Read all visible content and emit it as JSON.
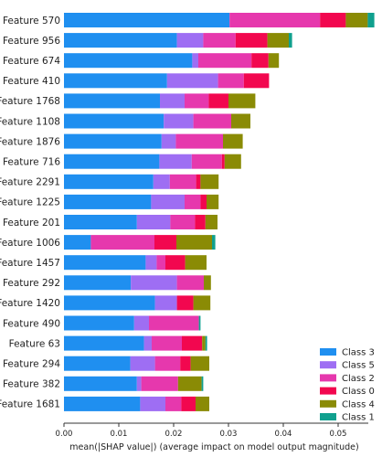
{
  "chart_data": {
    "type": "bar",
    "orientation": "horizontal",
    "stacked": true,
    "xlabel": "mean(|SHAP value|) (average impact on model output magnitude)",
    "ylabel": "",
    "xlim": [
      0,
      0.0555
    ],
    "xticks": [
      "0.00",
      "0.01",
      "0.02",
      "0.03",
      "0.04",
      "0.05"
    ],
    "grid": false,
    "legend_position": "lower-right",
    "categories": [
      "Feature 570",
      "Feature 956",
      "Feature 674",
      "Feature 410",
      "Feature 1768",
      "Feature 1108",
      "Feature 1876",
      "Feature 716",
      "Feature 2291",
      "Feature 1225",
      "Feature 201",
      "Feature 1006",
      "Feature 1457",
      "Feature 292",
      "Feature 1420",
      "Feature 490",
      "Feature 63",
      "Feature 294",
      "Feature 382",
      "Feature 1681"
    ],
    "series": [
      {
        "name": "Class 3",
        "color": "#1f8ff0",
        "values": [
          0.0302,
          0.0206,
          0.0234,
          0.0188,
          0.0175,
          0.0182,
          0.0178,
          0.0174,
          0.0163,
          0.0159,
          0.0133,
          0.0049,
          0.0149,
          0.0122,
          0.0166,
          0.0128,
          0.0146,
          0.0121,
          0.0133,
          0.0139
        ]
      },
      {
        "name": "Class 5",
        "color": "#9e6ef3",
        "values": [
          0.0,
          0.0048,
          0.0011,
          0.0093,
          0.0045,
          0.0054,
          0.0026,
          0.0059,
          0.003,
          0.0061,
          0.0061,
          0.0,
          0.002,
          0.0084,
          0.004,
          0.0027,
          0.0014,
          0.0045,
          0.0008,
          0.0046
        ]
      },
      {
        "name": "Class 2",
        "color": "#e638ad",
        "values": [
          0.0165,
          0.0059,
          0.0097,
          0.0047,
          0.0044,
          0.0069,
          0.0086,
          0.0055,
          0.0048,
          0.0029,
          0.0045,
          0.0116,
          0.0016,
          0.0049,
          0.0,
          0.0091,
          0.0055,
          0.0046,
          0.0067,
          0.0029
        ]
      },
      {
        "name": "Class 0",
        "color": "#f2074f",
        "values": [
          0.0047,
          0.0058,
          0.0031,
          0.0046,
          0.0036,
          0.0,
          0.0,
          0.0005,
          0.0008,
          0.0011,
          0.0019,
          0.004,
          0.0036,
          0.0,
          0.003,
          0.0,
          0.0037,
          0.0019,
          0.0,
          0.0026
        ]
      },
      {
        "name": "Class 4",
        "color": "#8a8b05",
        "values": [
          0.004,
          0.0039,
          0.0019,
          0.0,
          0.0049,
          0.0035,
          0.0036,
          0.003,
          0.0033,
          0.0022,
          0.0022,
          0.0065,
          0.0039,
          0.0013,
          0.0031,
          0.0,
          0.0006,
          0.0034,
          0.0043,
          0.0025
        ]
      },
      {
        "name": "Class 1",
        "color": "#10a08e",
        "values": [
          0.0012,
          0.0006,
          0.0,
          0.0,
          0.0,
          0.0,
          0.0,
          0.0,
          0.0,
          0.0,
          0.0,
          0.0006,
          0.0,
          0.0,
          0.0,
          0.0003,
          0.0003,
          0.0,
          0.0003,
          0.0
        ]
      }
    ],
    "legend_order": [
      "Class 3",
      "Class 5",
      "Class 2",
      "Class 0",
      "Class 4",
      "Class 1"
    ]
  }
}
